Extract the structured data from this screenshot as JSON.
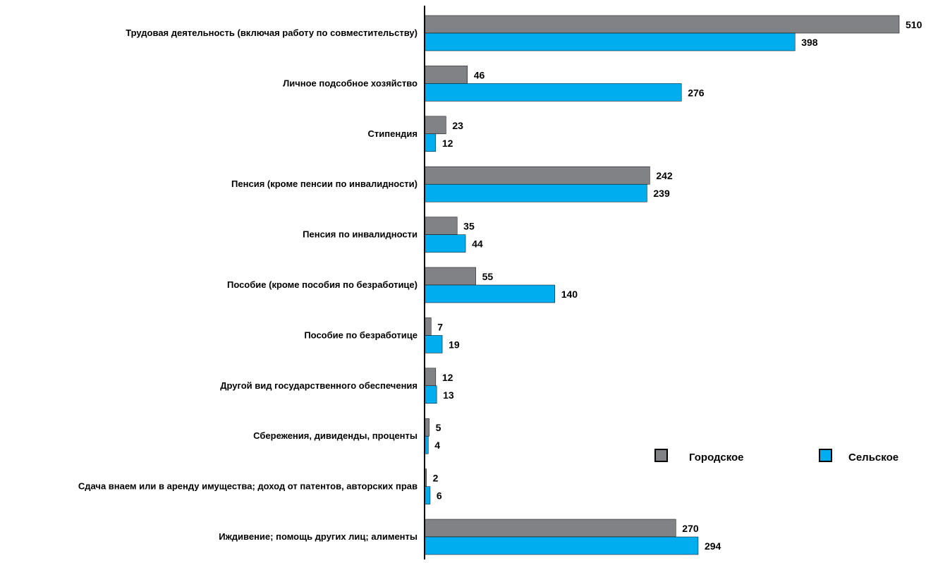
{
  "chart_data": {
    "type": "bar",
    "orientation": "horizontal",
    "categories": [
      "Трудовая деятельность (включая работу по совместительству)",
      "Личное подсобное хозяйство",
      "Стипендия",
      "Пенсия (кроме пенсии по инвалидности)",
      "Пенсия по инвалидности",
      "Пособие (кроме пособия по безработице)",
      "Пособие по безработице",
      "Другой вид государственного обеспечения",
      "Сбережения, дивиденды, проценты",
      "Сдача внаем или в аренду имущества; доход от патентов, авторских прав",
      "Иждивение;  помощь других лиц; алименты"
    ],
    "series": [
      {
        "name": "Городское",
        "color": "#808285",
        "values": [
          510,
          46,
          23,
          242,
          35,
          55,
          7,
          12,
          5,
          2,
          270
        ]
      },
      {
        "name": "Сельское",
        "color": "#00aeef",
        "values": [
          398,
          276,
          12,
          239,
          44,
          140,
          19,
          13,
          4,
          6,
          294
        ]
      }
    ],
    "xlim": [
      0,
      510
    ],
    "grid": false,
    "data_labels": true,
    "legend_position": "right"
  }
}
